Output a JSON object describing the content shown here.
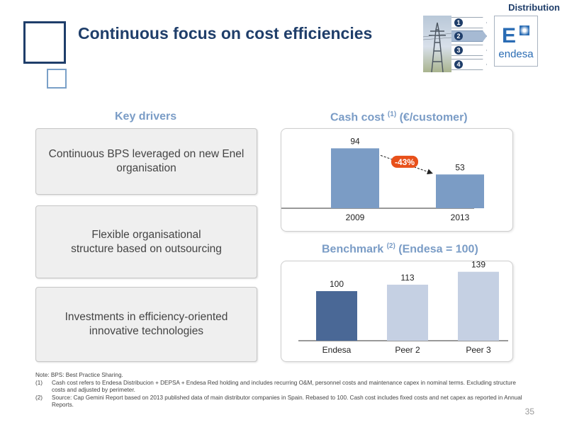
{
  "header": {
    "title": "Continuous focus on cost efficiencies",
    "section": "Distribution",
    "nav_items": [
      "1",
      "2",
      "3",
      "4"
    ],
    "active_nav": 1,
    "logo_mark": "E",
    "logo_text": "endesa"
  },
  "key_drivers": {
    "heading": "Key drivers",
    "items": [
      "Continuous BPS leveraged on new Enel\norganisation",
      "Flexible organisational\nstructure based on outsourcing",
      "Investments in efficiency-oriented\ninnovative technologies"
    ]
  },
  "cash_cost_heading": {
    "prefix": "Cash cost ",
    "note": "(1)",
    "suffix": " (€/customer)"
  },
  "benchmark_heading": {
    "prefix": "Benchmark ",
    "note": "(2)",
    "suffix": " (Endesa = 100)"
  },
  "chart_data": [
    {
      "type": "bar",
      "title": "Cash cost (1) (€/customer)",
      "categories": [
        "2009",
        "2013"
      ],
      "values": [
        94,
        53
      ],
      "annotation": "-43%",
      "colors": [
        "#7b9cc5",
        "#7b9cc5"
      ],
      "ylim": [
        0,
        100
      ]
    },
    {
      "type": "bar",
      "title": "Benchmark (2) (Endesa = 100)",
      "categories": [
        "Endesa",
        "Peer 2",
        "Peer 3"
      ],
      "values": [
        100,
        113,
        139
      ],
      "colors": [
        "#4a6896",
        "#c5d0e3",
        "#c5d0e3"
      ],
      "ylim": [
        0,
        150
      ]
    }
  ],
  "notes": {
    "lines": [
      {
        "num": "",
        "text": "Note: BPS: Best Practice Sharing."
      },
      {
        "num": "(1)",
        "text": "Cash cost refers to Endesa Distribucion + DEPSA + Endesa Red holding and  includes recurring O&M, personnel costs and maintenance capex in nominal terms. Excluding structure costs and adjusted by perimeter."
      },
      {
        "num": "(2)",
        "text": "Source: Cap Gemini Report based on 2013 published data of main distributor companies in Spain.  Rebased to 100. Cash cost includes fixed costs and net capex as reported in  Annual Reports."
      }
    ]
  },
  "page_number": "35",
  "colors": {
    "title": "#1f3e6a",
    "heading": "#7a9cc6",
    "annotation": "#e8501a"
  }
}
